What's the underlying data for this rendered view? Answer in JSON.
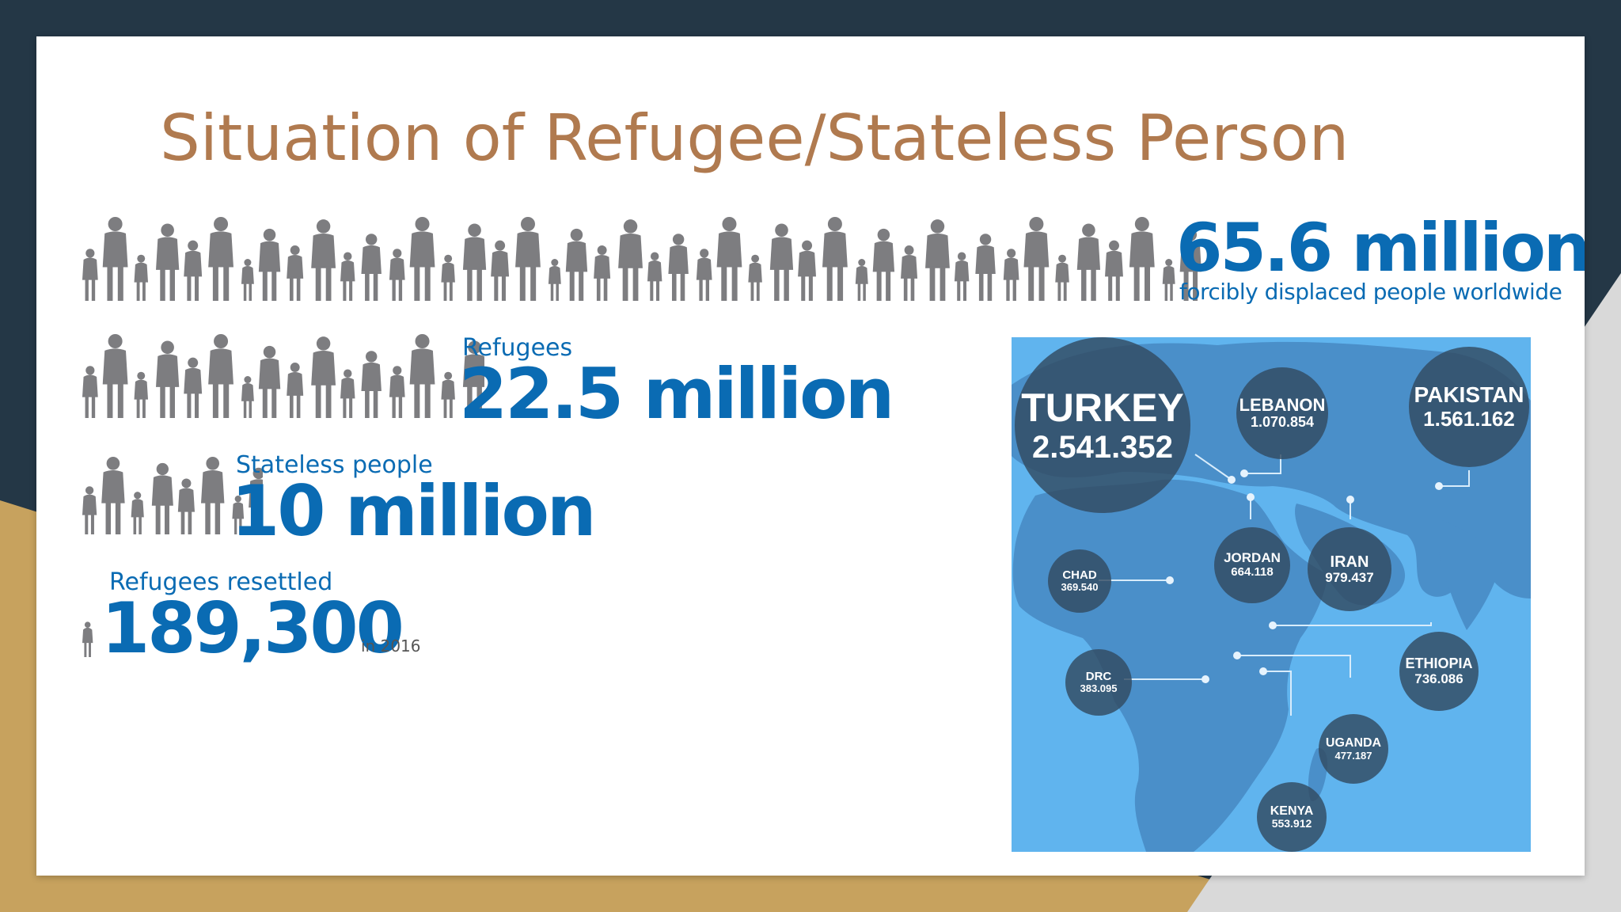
{
  "slide": {
    "title": "Situation of Refugee/Stateless Person"
  },
  "stats": {
    "displaced": {
      "value": "65.6 million",
      "caption": "forcibly displaced people worldwide"
    },
    "refugees": {
      "label": "Refugees",
      "value": "22.5 million"
    },
    "stateless": {
      "label": "Stateless people",
      "value": "10 million"
    },
    "resettled": {
      "label": "Refugees resettled",
      "value": "189,300",
      "suffix": "in 2016"
    }
  },
  "map": {
    "countries": [
      {
        "name": "TURKEY",
        "value": "2.541.352"
      },
      {
        "name": "LEBANON",
        "value": "1.070.854"
      },
      {
        "name": "PAKISTAN",
        "value": "1.561.162"
      },
      {
        "name": "JORDAN",
        "value": "664.118"
      },
      {
        "name": "IRAN",
        "value": "979.437"
      },
      {
        "name": "CHAD",
        "value": "369.540"
      },
      {
        "name": "DRC",
        "value": "383.095"
      },
      {
        "name": "ETHIOPIA",
        "value": "736.086"
      },
      {
        "name": "UGANDA",
        "value": "477.187"
      },
      {
        "name": "KENYA",
        "value": "553.912"
      }
    ]
  },
  "colors": {
    "accent": "#0a6bb3",
    "title": "#b07a4f",
    "silhouette": "#7d7d80",
    "map_bg": "#60b4ee",
    "bubble": "#324a61"
  }
}
